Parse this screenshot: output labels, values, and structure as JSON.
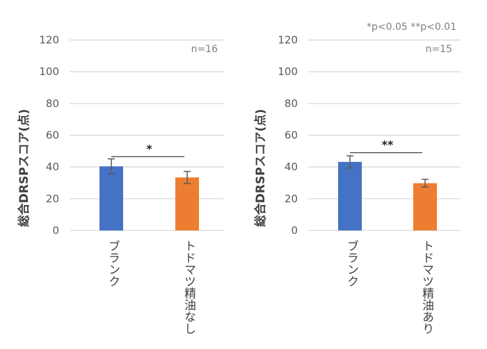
{
  "legend_note": "*p<0.05 **p<0.01",
  "chart_data": [
    {
      "type": "bar",
      "ylabel": "総合DRSPスコア(点)",
      "ylim": [
        0,
        120
      ],
      "yticks": [
        0,
        20,
        40,
        60,
        80,
        100,
        120
      ],
      "grid": true,
      "categories": [
        "ブランク",
        "トドマツ精油なし"
      ],
      "values": [
        40.4,
        33.4
      ],
      "errors": [
        4.7,
        3.8
      ],
      "colors": [
        "#4472C4",
        "#ED7D31"
      ],
      "annotation": "n=16",
      "significance": {
        "label": "*",
        "y": 46.5
      }
    },
    {
      "type": "bar",
      "ylabel": "総合DRSPスコア(点)",
      "ylim": [
        0,
        120
      ],
      "yticks": [
        0,
        20,
        40,
        60,
        80,
        100,
        120
      ],
      "grid": true,
      "categories": [
        "ブランク",
        "トドマツ精油あり"
      ],
      "values": [
        43.2,
        29.8
      ],
      "errors": [
        3.8,
        2.4
      ],
      "colors": [
        "#4472C4",
        "#ED7D31"
      ],
      "annotation": "n=15",
      "significance": {
        "label": "**",
        "y": 49
      }
    }
  ]
}
